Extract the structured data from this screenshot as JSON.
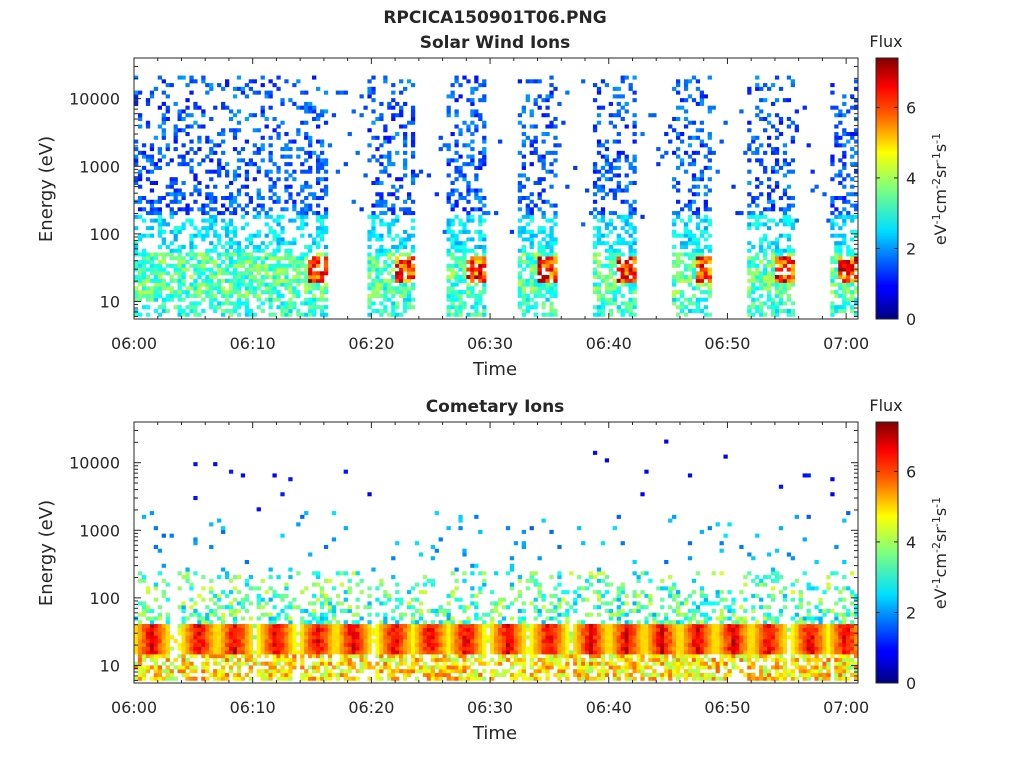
{
  "figure_title": "RPCICA150901T06.PNG",
  "chart_data": [
    {
      "type": "heatmap",
      "title": "Solar Wind Ions",
      "xlabel": "Time",
      "ylabel": "Energy (eV)",
      "x_ticks": [
        "06:00",
        "06:10",
        "06:20",
        "06:30",
        "06:40",
        "06:50",
        "07:00"
      ],
      "x_range_minutes": [
        0,
        61
      ],
      "y_scale": "log",
      "y_range": [
        5.5,
        40000
      ],
      "y_ticks": [
        10,
        100,
        1000,
        10000
      ],
      "y_tick_labels": [
        "10",
        "100",
        "1000",
        "10000"
      ],
      "colorbar": {
        "title": "Flux",
        "label": "eV-1cm-2sr-1s-1",
        "range": [
          0,
          7.4
        ],
        "ticks": [
          0,
          2,
          4,
          6
        ],
        "tick_labels": [
          "0",
          "2",
          "4",
          "6"
        ],
        "colormap": "jet"
      },
      "active_intervals_minutes": [
        [
          0,
          16.3
        ],
        [
          19.7,
          23.6
        ],
        [
          26.4,
          29.6
        ],
        [
          32.4,
          35.6
        ],
        [
          38.8,
          42.4
        ],
        [
          45.4,
          48.8
        ],
        [
          51.6,
          55.6
        ],
        [
          58.6,
          61
        ]
      ],
      "structure": "sparse flux 10-20000 eV (values ~1-2) during active intervals; hot spot ~30 eV (values 5-7) near the end of each interval"
    },
    {
      "type": "heatmap",
      "title": "Cometary Ions",
      "xlabel": "Time",
      "ylabel": "Energy (eV)",
      "x_ticks": [
        "06:00",
        "06:10",
        "06:20",
        "06:30",
        "06:40",
        "06:50",
        "07:00"
      ],
      "x_range_minutes": [
        0,
        61
      ],
      "y_scale": "log",
      "y_range": [
        5.5,
        40000
      ],
      "y_ticks": [
        10,
        100,
        1000,
        10000
      ],
      "y_tick_labels": [
        "10",
        "100",
        "1000",
        "10000"
      ],
      "colorbar": {
        "title": "Flux",
        "label": "eV-1cm-2sr-1s-1",
        "range": [
          0,
          7.4
        ],
        "ticks": [
          0,
          2,
          4,
          6
        ],
        "tick_labels": [
          "0",
          "2",
          "4",
          "6"
        ],
        "colormap": "jet"
      },
      "bursts_center_minutes": [
        1.5,
        5.5,
        8.5,
        12,
        15.5,
        18.5,
        22,
        25,
        28,
        31.5,
        35,
        38.5,
        41.5,
        44.5,
        47.5,
        50.5,
        53.5,
        57,
        60
      ],
      "structure": "intense flux (values 5-7) at 15-40 eV in periodic bursts, extending to ~200 eV; sparse isolated points up to ~20000 eV"
    }
  ],
  "colors": {
    "jet_low": "#00007f",
    "jet_mid": "#7fff7f",
    "jet_high": "#7f0000",
    "axis": "#262626"
  }
}
